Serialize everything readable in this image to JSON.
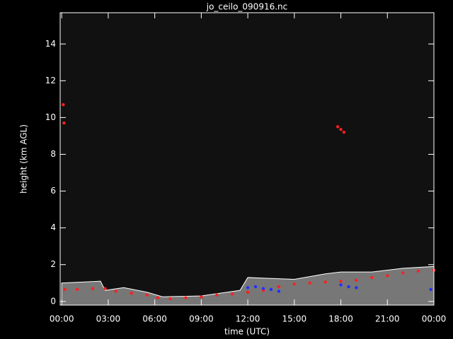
{
  "chart_data": {
    "type": "ceilometer",
    "title": "jo_ceilo_090916.nc",
    "x_label": "time (UTC)",
    "y_label": "height (km AGL)",
    "xlim": [
      -0.1,
      24.0
    ],
    "ylim": [
      -0.2,
      15.7
    ],
    "xticks": [
      {
        "value": 0,
        "label": "00:00"
      },
      {
        "value": 3,
        "label": "03:00"
      },
      {
        "value": 6,
        "label": "06:00"
      },
      {
        "value": 9,
        "label": "09:00"
      },
      {
        "value": 12,
        "label": "12:00"
      },
      {
        "value": 15,
        "label": "15:00"
      },
      {
        "value": 18,
        "label": "18:00"
      },
      {
        "value": 21,
        "label": "21:00"
      },
      {
        "value": 24,
        "label": "00:00"
      }
    ],
    "yticks": [
      0,
      2,
      4,
      6,
      8,
      10,
      12,
      14
    ],
    "background": "#111111",
    "series": [
      {
        "mode": "area",
        "color": "#9a9a9a",
        "x": [
          0,
          2.5,
          2.8,
          4,
          5.5,
          6.5,
          9,
          11.5,
          12,
          15,
          17,
          18,
          20,
          22,
          24
        ],
        "values": [
          1.0,
          1.1,
          0.6,
          0.75,
          0.5,
          0.25,
          0.3,
          0.6,
          1.3,
          1.2,
          1.5,
          1.6,
          1.6,
          1.8,
          1.9
        ]
      },
      {
        "mode": "points",
        "color": "#ff2020",
        "x": [
          0.2,
          1,
          2,
          2.8,
          3.5,
          4.5,
          5.5,
          6.2,
          7,
          8,
          9,
          10,
          11,
          12,
          13,
          14,
          15,
          16,
          17,
          18,
          19,
          20,
          21,
          22,
          23,
          24,
          0.1,
          0.15,
          17.8,
          18.0,
          18.2
        ],
        "values": [
          0.65,
          0.65,
          0.7,
          0.7,
          0.55,
          0.45,
          0.35,
          0.2,
          0.15,
          0.2,
          0.25,
          0.35,
          0.4,
          0.5,
          0.6,
          0.8,
          0.95,
          1.0,
          1.05,
          1.1,
          1.15,
          1.3,
          1.4,
          1.55,
          1.65,
          1.7,
          10.7,
          9.7,
          9.5,
          9.35,
          9.2
        ]
      },
      {
        "mode": "points",
        "color": "#2030ff",
        "x": [
          12,
          12.5,
          13,
          13.5,
          14,
          18,
          18.5,
          19,
          23.8
        ],
        "values": [
          0.75,
          0.8,
          0.7,
          0.65,
          0.55,
          0.9,
          0.8,
          0.75,
          0.65
        ]
      }
    ]
  }
}
